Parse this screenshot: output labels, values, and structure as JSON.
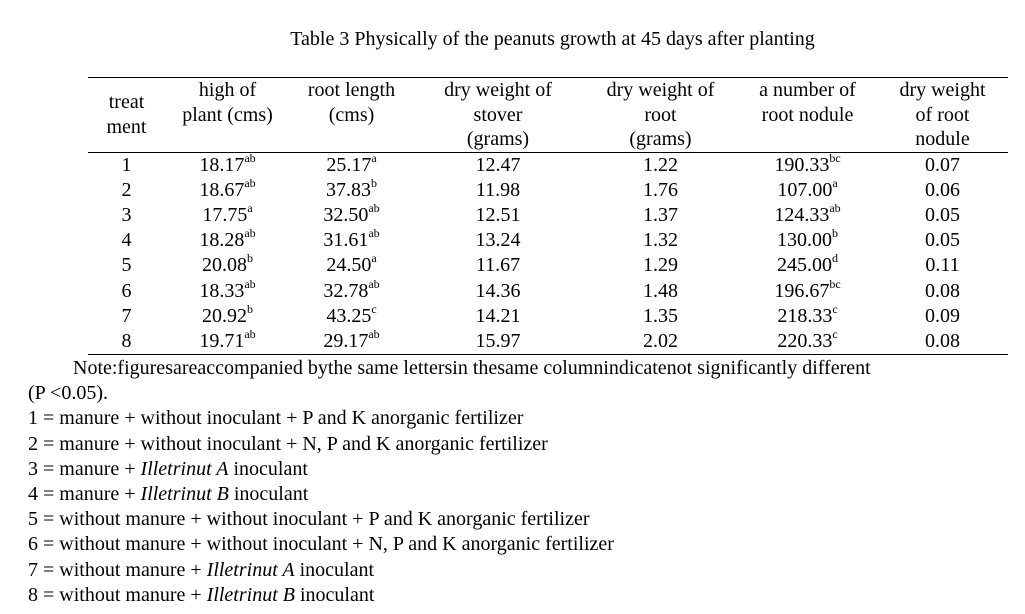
{
  "title": "Table 3 Physically of the peanuts growth at 45 days after planting",
  "headers": [
    [
      "treat",
      "ment"
    ],
    [
      "high of",
      "plant (cms)"
    ],
    [
      "root length",
      "(cms)"
    ],
    [
      "dry weight of",
      "stover",
      "(grams)"
    ],
    [
      "dry weight of",
      "root",
      "(grams)"
    ],
    [
      "a number of",
      "root nodule"
    ],
    [
      "dry weight",
      "of root",
      "nodule"
    ]
  ],
  "rows": [
    [
      {
        "v": "1"
      },
      {
        "v": "18.17",
        "s": "ab"
      },
      {
        "v": "25.17",
        "s": "a"
      },
      {
        "v": "12.47"
      },
      {
        "v": "1.22"
      },
      {
        "v": "190.33",
        "s": "bc"
      },
      {
        "v": "0.07"
      }
    ],
    [
      {
        "v": "2"
      },
      {
        "v": "18.67",
        "s": "ab"
      },
      {
        "v": "37.83",
        "s": "b"
      },
      {
        "v": "11.98"
      },
      {
        "v": "1.76"
      },
      {
        "v": "107.00",
        "s": "a"
      },
      {
        "v": "0.06"
      }
    ],
    [
      {
        "v": "3"
      },
      {
        "v": "17.75",
        "s": "a"
      },
      {
        "v": "32.50",
        "s": "ab"
      },
      {
        "v": "12.51"
      },
      {
        "v": "1.37"
      },
      {
        "v": "124.33",
        "s": "ab"
      },
      {
        "v": "0.05"
      }
    ],
    [
      {
        "v": "4"
      },
      {
        "v": "18.28",
        "s": "ab"
      },
      {
        "v": "31.61",
        "s": "ab"
      },
      {
        "v": "13.24"
      },
      {
        "v": "1.32"
      },
      {
        "v": "130.00",
        "s": "b"
      },
      {
        "v": "0.05"
      }
    ],
    [
      {
        "v": "5"
      },
      {
        "v": "20.08",
        "s": "b"
      },
      {
        "v": "24.50",
        "s": "a"
      },
      {
        "v": "11.67"
      },
      {
        "v": "1.29"
      },
      {
        "v": "245.00",
        "s": "d"
      },
      {
        "v": "0.11"
      }
    ],
    [
      {
        "v": "6"
      },
      {
        "v": "18.33",
        "s": "ab"
      },
      {
        "v": "32.78",
        "s": "ab"
      },
      {
        "v": "14.36"
      },
      {
        "v": "1.48"
      },
      {
        "v": "196.67",
        "s": "bc"
      },
      {
        "v": "0.08"
      }
    ],
    [
      {
        "v": "7"
      },
      {
        "v": "20.92",
        "s": "b"
      },
      {
        "v": "43.25",
        "s": "c"
      },
      {
        "v": "14.21"
      },
      {
        "v": "1.35"
      },
      {
        "v": "218.33",
        "s": "c"
      },
      {
        "v": "0.09"
      }
    ],
    [
      {
        "v": "8"
      },
      {
        "v": "19.71",
        "s": "ab"
      },
      {
        "v": "29.17",
        "s": "ab"
      },
      {
        "v": "15.97"
      },
      {
        "v": "2.02"
      },
      {
        "v": "220.33",
        "s": "c"
      },
      {
        "v": "0.08"
      }
    ]
  ],
  "note": "Note:figuresareaccompanied bythe same lettersin thesame columnindicatenot significantly different",
  "note_cont": "(P <0.05).",
  "legend": [
    {
      "pre": "1 = manure + without inoculant + P and K anorganic fertilizer"
    },
    {
      "pre": "2 = manure + without inoculant + N, P and K anorganic fertilizer"
    },
    {
      "pre": "3 = manure + ",
      "it": "Illetrinut A",
      "post": " inoculant"
    },
    {
      "pre": "4 = manure + ",
      "it": "Illetrinut B",
      "post": " inoculant"
    },
    {
      "pre": "5 = without manure + without inoculant + P and K anorganic fertilizer"
    },
    {
      "pre": "6 = without manure + without inoculant + N, P and K anorganic fertilizer"
    },
    {
      "pre": "7 = without manure + ",
      "it": "Illetrinut A",
      "post": " inoculant"
    },
    {
      "pre": "8 = without manure + ",
      "it": "Illetrinut B",
      "post": " inoculant"
    }
  ]
}
